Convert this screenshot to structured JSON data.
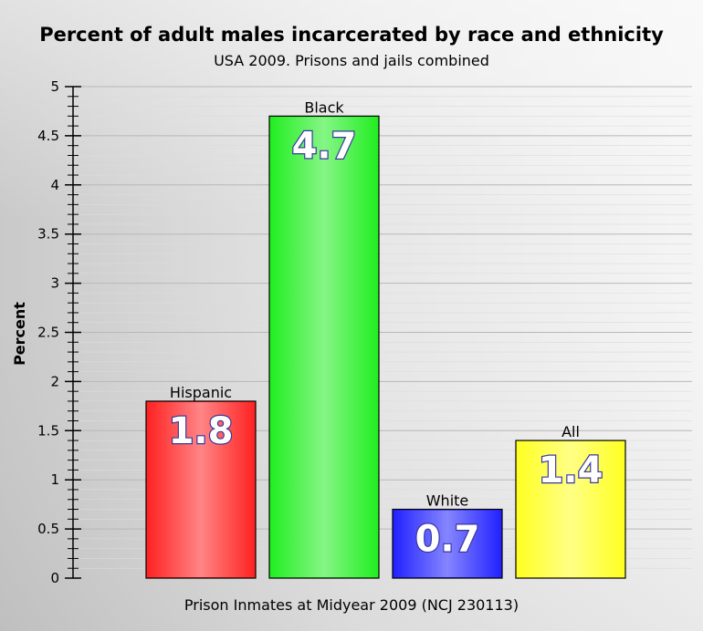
{
  "chart_data": {
    "type": "bar",
    "title": "Percent of adult males incarcerated by race and ethnicity",
    "subtitle": "USA 2009. Prisons and jails combined",
    "xlabel": "Prison Inmates at Midyear 2009 (NCJ 230113)",
    "ylabel": "Percent",
    "ylim": [
      0,
      5
    ],
    "major_step": 0.5,
    "minor_step": 0.1,
    "grid": true,
    "y_ticks": [
      "0",
      "0.5",
      "1",
      "1.5",
      "2",
      "2.5",
      "3",
      "3.5",
      "4",
      "4.5",
      "5"
    ],
    "categories": [
      "Hispanic",
      "Black",
      "White",
      "All"
    ],
    "values": [
      1.8,
      4.7,
      0.7,
      1.4
    ],
    "value_labels": [
      "1.8",
      "4.7",
      "0.7",
      "1.4"
    ],
    "colors": [
      "#ff2222",
      "#22ee22",
      "#2222ff",
      "#ffff22"
    ]
  }
}
